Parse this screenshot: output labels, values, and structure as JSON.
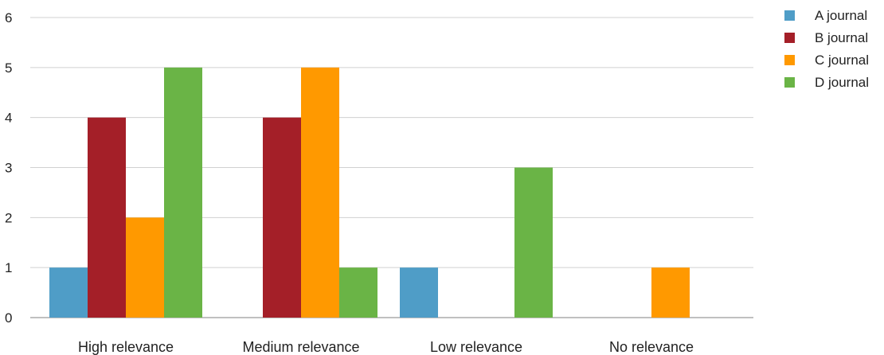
{
  "chart_data": {
    "type": "bar",
    "categories": [
      "High relevance",
      "Medium relevance",
      "Low relevance",
      "No relevance"
    ],
    "series": [
      {
        "name": "A journal",
        "color": "#4F9DC7",
        "values": [
          1,
          0,
          1,
          0
        ]
      },
      {
        "name": "B journal",
        "color": "#A41F28",
        "values": [
          4,
          4,
          0,
          0
        ]
      },
      {
        "name": "C journal",
        "color": "#FF9900",
        "values": [
          2,
          5,
          0,
          1
        ]
      },
      {
        "name": "D journal",
        "color": "#6AB446",
        "values": [
          5,
          1,
          3,
          0
        ]
      }
    ],
    "yticks": [
      0,
      1,
      2,
      3,
      4,
      5,
      6
    ],
    "ylim": [
      0,
      6
    ],
    "grid": true,
    "legend_position": "top-right",
    "title": "",
    "xlabel": "",
    "ylabel": ""
  }
}
